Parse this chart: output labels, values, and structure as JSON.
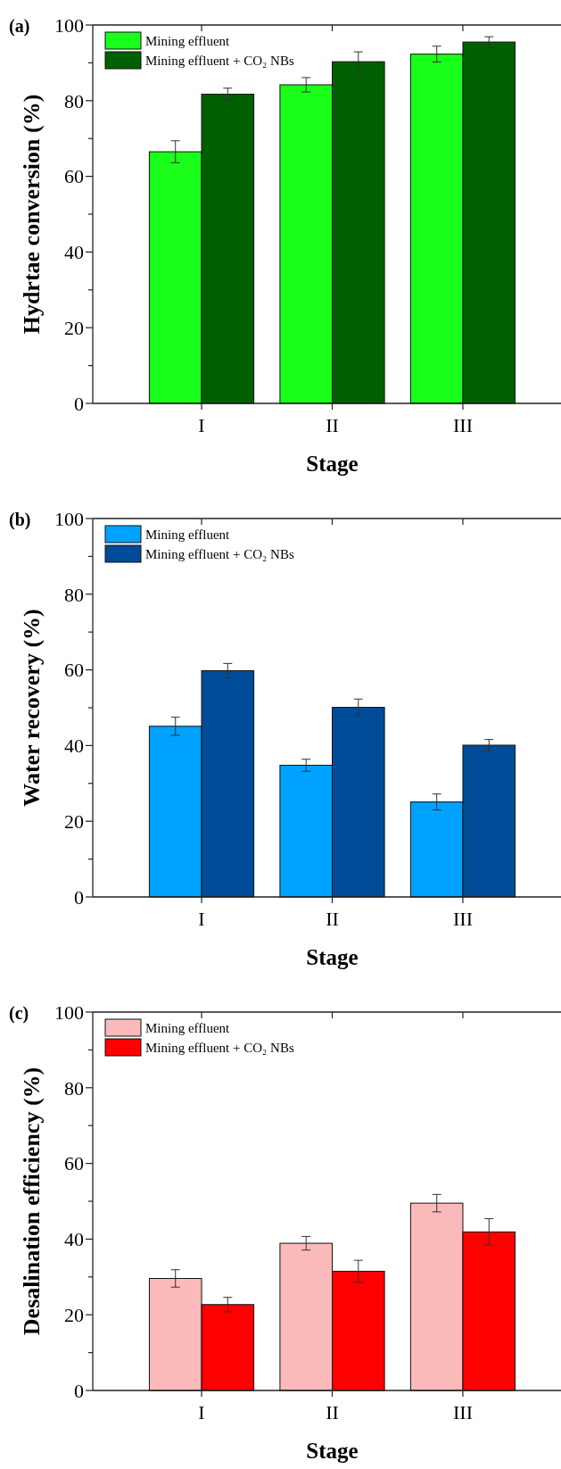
{
  "chart_data": [
    {
      "type": "bar",
      "title": "(a)",
      "xlabel": "Stage",
      "ylabel": "Hydrtae conversion (%)",
      "categories": [
        "I",
        "II",
        "III"
      ],
      "ylim": [
        0,
        100
      ],
      "yticks": [
        0,
        {
          "value": 10,
          "label": null
        },
        20,
        {
          "value": 30,
          "label": null
        },
        40,
        {
          "value": 50,
          "label": null
        },
        60,
        {
          "value": 70,
          "label": null
        },
        80,
        {
          "value": 90,
          "label": null
        },
        100
      ],
      "legend": "top left",
      "series": [
        {
          "name": "Mining effluent",
          "color": "#1aff1a",
          "values": [
            66.5,
            84.2,
            92.3
          ],
          "errors": [
            2.9,
            1.9,
            2.1
          ]
        },
        {
          "name": "Mining effluent + CO₂ NBs",
          "color": "#006000",
          "values": [
            81.7,
            90.3,
            95.5
          ],
          "errors": [
            1.6,
            2.6,
            1.4
          ]
        }
      ]
    },
    {
      "type": "bar",
      "title": "(b)",
      "xlabel": "Stage",
      "ylabel": "Water recovery (%)",
      "categories": [
        "I",
        "II",
        "III"
      ],
      "ylim": [
        0,
        100
      ],
      "yticks": [
        0,
        {
          "value": 10,
          "label": null
        },
        20,
        {
          "value": 30,
          "label": null
        },
        40,
        {
          "value": 50,
          "label": null
        },
        60,
        {
          "value": 70,
          "label": null
        },
        80,
        {
          "value": 90,
          "label": null
        },
        100
      ],
      "legend": "top left",
      "series": [
        {
          "name": "Mining effluent",
          "color": "#00a2ff",
          "values": [
            45.1,
            34.8,
            25.1
          ],
          "errors": [
            2.4,
            1.6,
            2.1
          ]
        },
        {
          "name": "Mining effluent + CO₂ NBs",
          "color": "#004c99",
          "values": [
            59.8,
            50.1,
            40.1
          ],
          "errors": [
            1.9,
            2.2,
            1.5
          ]
        }
      ]
    },
    {
      "type": "bar",
      "title": "(c)",
      "xlabel": "Stage",
      "ylabel": "Desalination efficiency (%)",
      "categories": [
        "I",
        "II",
        "III"
      ],
      "ylim": [
        0,
        100
      ],
      "yticks": [
        0,
        {
          "value": 10,
          "label": null
        },
        20,
        {
          "value": 30,
          "label": null
        },
        40,
        {
          "value": 50,
          "label": null
        },
        60,
        {
          "value": 70,
          "label": null
        },
        80,
        {
          "value": 90,
          "label": null
        },
        100
      ],
      "legend": "top left",
      "series": [
        {
          "name": "Mining effluent",
          "color": "#fbbaba",
          "values": [
            29.6,
            38.9,
            49.5
          ],
          "errors": [
            2.3,
            1.8,
            2.3
          ]
        },
        {
          "name": "Mining effluent + CO₂ NBs",
          "color": "#ff0000",
          "values": [
            22.7,
            31.5,
            41.9
          ],
          "errors": [
            1.9,
            2.9,
            3.5
          ]
        }
      ]
    }
  ]
}
